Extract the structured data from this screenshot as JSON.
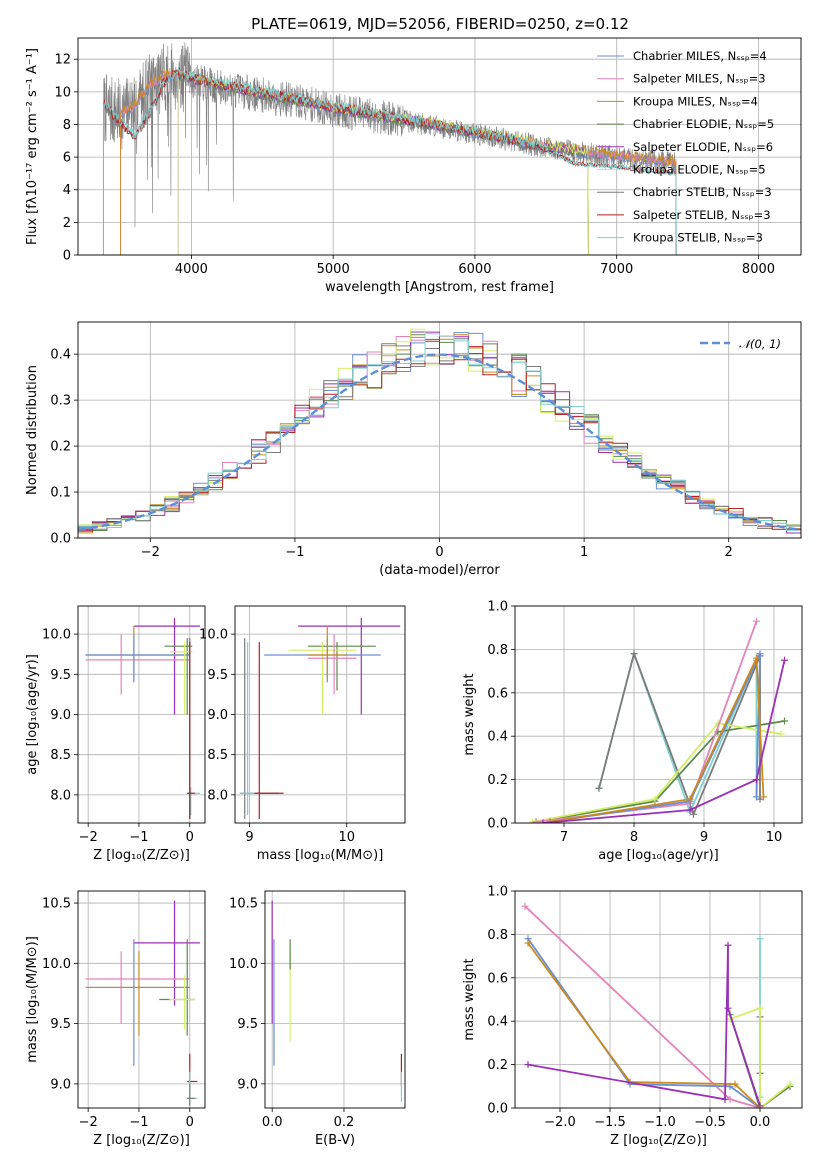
{
  "title": "PLATE=0619, MJD=52056, FIBERID=0250, z=0.12",
  "colors": {
    "chabrier_miles": "#6a8fd6",
    "salpeter_miles": "#e584b8",
    "kroupa_miles": "#cc8a1c",
    "chabrier_elodie": "#5e8a4e",
    "salpeter_elodie": "#9b30b5",
    "kroupa_elodie": "#d2ef64",
    "chabrier_stelib": "#7a7a7a",
    "salpeter_stelib": "#b22222",
    "kroupa_stelib": "#7fd0d0",
    "gaussian": "#5b8fd9",
    "data": "#7f7f7f"
  },
  "chart_data": [
    {
      "id": "spectrum",
      "type": "line",
      "xlabel": "wavelength [Angstrom, rest frame]",
      "ylabel": "Flux [fλ10⁻¹⁷ erg cm⁻² s⁻¹ A⁻¹]",
      "xlim": [
        3200,
        8300
      ],
      "ylim": [
        0,
        13.3
      ],
      "xticks": [
        "4000",
        "5000",
        "6000",
        "7000",
        "8000"
      ],
      "yticks": [
        "0",
        "2",
        "4",
        "6",
        "8",
        "10",
        "12"
      ],
      "legend_position": "top-right",
      "legend": [
        "Chabrier MILES, Nₛₛₚ=4",
        "Salpeter MILES, Nₛₛₚ=3",
        "Kroupa MILES, Nₛₛₚ=4",
        "Chabrier ELODIE, Nₛₛₚ=5",
        "Salpeter ELODIE, Nₛₛₚ=6",
        "Kroupa ELODIE, Nₛₛₚ=5",
        "Chabrier STELIB, Nₛₛₚ=3",
        "Salpeter STELIB, Nₛₛₚ=3",
        "Kroupa STELIB, Nₛₛₚ=3"
      ],
      "continuum": {
        "x": [
          3380,
          3500,
          3600,
          3700,
          3800,
          3900,
          4000,
          4200,
          4500,
          4800,
          5000,
          5300,
          5600,
          5900,
          6200,
          6500,
          6800,
          7000,
          7200,
          7420
        ],
        "y": [
          9.0,
          8.6,
          9.1,
          10.3,
          10.9,
          11.0,
          10.7,
          10.3,
          9.8,
          9.3,
          8.9,
          8.5,
          8.1,
          7.6,
          7.1,
          6.6,
          6.2,
          6.0,
          5.8,
          5.6
        ]
      },
      "stelib_continuum": {
        "x": [
          3380,
          3500,
          3600,
          3700,
          3800,
          3900,
          4000,
          4200,
          4500,
          4800,
          5000,
          5300,
          5600,
          5900,
          6200,
          6500,
          6700,
          7000,
          7200,
          7420
        ],
        "y": [
          9.2,
          8.0,
          7.2,
          8.6,
          10.4,
          11.2,
          10.8,
          10.4,
          9.9,
          9.4,
          9.0,
          8.6,
          8.1,
          7.6,
          7.1,
          6.5,
          5.6,
          5.4,
          5.2,
          5.0
        ]
      }
    },
    {
      "id": "residuals",
      "type": "step",
      "xlabel": "(data-model)/error",
      "ylabel": "Normed distribution",
      "xlim": [
        -2.5,
        2.5
      ],
      "ylim": [
        0,
        0.47
      ],
      "xticks": [
        "−2",
        "−1",
        "0",
        "1",
        "2"
      ],
      "yticks": [
        "0.0",
        "0.1",
        "0.2",
        "0.3",
        "0.4"
      ],
      "legend_position": "top-right",
      "legend": [
        "𝒩(0, 1)"
      ],
      "bin_width": 0.1
    },
    {
      "id": "age-vs-Z",
      "type": "errorbar",
      "xlabel": "Z [log₁₀(Z/Z⊙)]",
      "ylabel": "age  [log₁₀(age/yr)]",
      "xlim": [
        -2.2,
        0.3
      ],
      "ylim": [
        7.65,
        10.35
      ],
      "xticks": [
        "−2",
        "−1",
        "0"
      ],
      "yticks": [
        "8.0",
        "8.5",
        "9.0",
        "9.5",
        "10.0"
      ]
    },
    {
      "id": "age-vs-mass",
      "type": "errorbar",
      "xlabel": "mass [log₁₀(M/M⊙)]",
      "xlim": [
        8.85,
        10.6
      ],
      "ylim": [
        7.65,
        10.35
      ],
      "xticks": [
        "9",
        "10"
      ],
      "yticks": [
        "8.0",
        "8.5",
        "9.0",
        "9.5",
        "10.0"
      ]
    },
    {
      "id": "weight-vs-age",
      "type": "line",
      "xlabel": "age  [log₁₀(age/yr)]",
      "ylabel": "mass weight",
      "xlim": [
        6.3,
        10.4
      ],
      "ylim": [
        0,
        1.0
      ],
      "xticks": [
        "7",
        "8",
        "9",
        "10"
      ],
      "yticks": [
        "0.0",
        "0.2",
        "0.4",
        "0.6",
        "0.8",
        "1.0"
      ]
    },
    {
      "id": "mass-vs-Z",
      "type": "errorbar",
      "xlabel": "Z [log₁₀(Z/Z⊙)]",
      "ylabel": "mass [log₁₀(M/M⊙)]",
      "xlim": [
        -2.2,
        0.3
      ],
      "ylim": [
        8.8,
        10.6
      ],
      "xticks": [
        "−2",
        "−1",
        "0"
      ],
      "yticks": [
        "9.0",
        "9.5",
        "10.0",
        "10.5"
      ]
    },
    {
      "id": "mass-vs-ebv",
      "type": "errorbar",
      "xlabel": "E(B-V)",
      "xlim": [
        -0.02,
        0.37
      ],
      "ylim": [
        8.8,
        10.6
      ],
      "xticks": [
        "0.0",
        "0.2"
      ],
      "yticks": [
        "9.0",
        "9.5",
        "10.0",
        "10.5"
      ]
    },
    {
      "id": "weight-vs-Z",
      "type": "line",
      "xlabel": "Z [log₁₀(Z/Z⊙)]",
      "ylabel": "mass weight",
      "xlim": [
        -2.45,
        0.42
      ],
      "ylim": [
        0,
        1.0
      ],
      "xticks": [
        "−2.0",
        "−1.5",
        "−1.0",
        "−0.5",
        "0.0"
      ],
      "yticks": [
        "0.0",
        "0.2",
        "0.4",
        "0.6",
        "0.8",
        "1.0"
      ]
    }
  ]
}
